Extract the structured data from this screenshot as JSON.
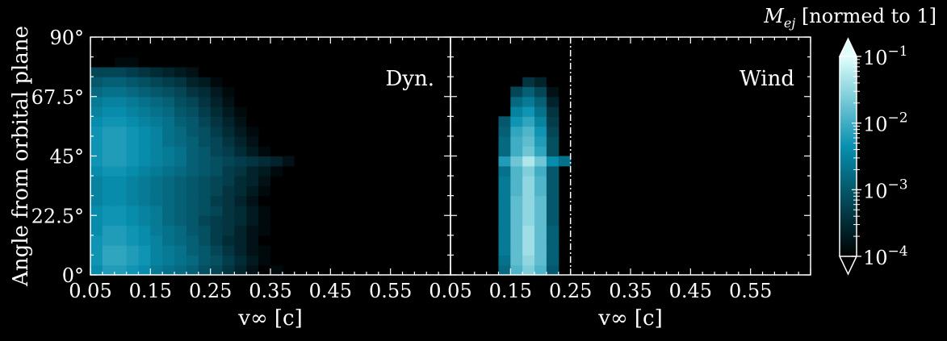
{
  "colors": {
    "background": "#000000",
    "foreground": "#ffffff",
    "cmap_low": "#000000",
    "cmap_mid": "#0890b0",
    "cmap_high": "#e0fffc"
  },
  "chart_data": [
    {
      "type": "heatmap",
      "panel_label": "Dyn.",
      "xlabel": "v∞ [c]",
      "ylabel": "Angle from orbital plane",
      "xlim": [
        0.05,
        0.65
      ],
      "ylim": [
        0,
        90
      ],
      "xticks": [
        "0.05",
        "0.15",
        "0.25",
        "0.35",
        "0.45",
        "0.55"
      ],
      "yticks": [
        "0°",
        "22.5°",
        "45°",
        "67.5°",
        "90°"
      ],
      "x_bin_width": 0.02,
      "y_bin_width": 3.75,
      "rows": [
        {
          "y": 0,
          "x0": 0.05,
          "log10": [
            -2.4,
            -2.2,
            -2.2,
            -2.3,
            -2.4,
            -2.6,
            -2.7,
            -2.8,
            -2.9,
            -3.1,
            -3.2,
            -3.4,
            -3.6,
            -3.8,
            -4.0,
            -3.9,
            -4.0,
            -4.0,
            -4.1,
            -4.2,
            -4.5,
            -4.6,
            -4.6,
            -5.0,
            -4.8
          ]
        },
        {
          "y": 3.75,
          "x0": 0.05,
          "log10": [
            -2.3,
            -2.1,
            -2.1,
            -2.2,
            -2.3,
            -2.5,
            -2.6,
            -2.7,
            -2.8,
            -3.0,
            -3.1,
            -3.3,
            -3.5,
            -3.7,
            -3.9,
            -4.0,
            -4.1,
            -4.2,
            -4.3,
            -4.5
          ]
        },
        {
          "y": 7.5,
          "x0": 0.05,
          "log10": [
            -2.3,
            -2.1,
            -2.1,
            -2.2,
            -2.3,
            -2.5,
            -2.6,
            -2.7,
            -2.9,
            -3.0,
            -3.2,
            -3.4,
            -3.6,
            -3.8,
            -3.9,
            -4.1,
            -4.3
          ]
        },
        {
          "y": 11.25,
          "x0": 0.05,
          "log10": [
            -2.3,
            -2.2,
            -2.2,
            -2.3,
            -2.4,
            -2.5,
            -2.7,
            -2.8,
            -2.9,
            -3.1,
            -3.3,
            -3.5,
            -3.6,
            -3.8,
            -4.0,
            -4.2,
            -4.4
          ]
        },
        {
          "y": 15,
          "x0": 0.05,
          "log10": [
            -2.4,
            -2.2,
            -2.2,
            -2.3,
            -2.4,
            -2.6,
            -2.7,
            -2.8,
            -3.0,
            -3.1,
            -3.3,
            -3.4,
            -3.6,
            -3.8,
            -3.9,
            -4.1,
            -4.3
          ]
        },
        {
          "y": 18.75,
          "x0": 0.05,
          "log10": [
            -2.4,
            -2.3,
            -2.3,
            -2.4,
            -2.5,
            -2.6,
            -2.8,
            -2.9,
            -3.0,
            -3.2,
            -3.3,
            -3.4,
            -3.5,
            -3.7,
            -3.9,
            -4.1
          ]
        },
        {
          "y": 22.5,
          "x0": 0.05,
          "log10": [
            -2.4,
            -2.3,
            -2.3,
            -2.4,
            -2.5,
            -2.6,
            -2.8,
            -2.9,
            -3.0,
            -3.1,
            -3.2,
            -3.4,
            -3.5,
            -3.7,
            -3.9,
            -4.1,
            -4.3
          ]
        },
        {
          "y": 26.25,
          "x0": 0.05,
          "log10": [
            -2.5,
            -2.4,
            -2.4,
            -2.5,
            -2.6,
            -2.7,
            -2.8,
            -2.9,
            -3.0,
            -3.1,
            -3.3,
            -3.4,
            -3.6,
            -3.8,
            -4.0,
            -4.2
          ]
        },
        {
          "y": 30,
          "x0": 0.05,
          "log10": [
            -2.5,
            -2.4,
            -2.4,
            -2.5,
            -2.6,
            -2.7,
            -2.8,
            -2.9,
            -3.0,
            -3.1,
            -3.2,
            -3.4,
            -3.5,
            -3.7,
            -3.9,
            -4.1,
            -4.2
          ]
        },
        {
          "y": 33.75,
          "x0": 0.05,
          "log10": [
            -2.5,
            -2.4,
            -2.4,
            -2.5,
            -2.6,
            -2.7,
            -2.8,
            -2.9,
            -3.0,
            -3.1,
            -3.2,
            -3.3,
            -3.5,
            -3.6,
            -3.8,
            -4.0,
            -4.1
          ]
        },
        {
          "y": 37.5,
          "x0": 0.05,
          "log10": [
            -2.4,
            -2.3,
            -2.3,
            -2.4,
            -2.5,
            -2.6,
            -2.7,
            -2.8,
            -2.9,
            -3.0,
            -3.1,
            -3.3,
            -3.4,
            -3.6,
            -3.7,
            -3.9,
            -4.1
          ]
        },
        {
          "y": 41.25,
          "x0": 0.05,
          "log10": [
            -2.3,
            -2.2,
            -2.2,
            -2.3,
            -2.4,
            -2.5,
            -2.6,
            -2.7,
            -2.9,
            -3.0,
            -3.1,
            -3.2,
            -3.3,
            -3.4,
            -3.5,
            -3.6,
            -3.8,
            -4.0,
            -4.2
          ]
        },
        {
          "y": 45,
          "x0": 0.05,
          "log10": [
            -2.3,
            -2.2,
            -2.2,
            -2.3,
            -2.4,
            -2.5,
            -2.6,
            -2.7,
            -2.9,
            -3.0,
            -3.2,
            -3.3,
            -3.5,
            -3.7,
            -3.9,
            -4.1
          ]
        },
        {
          "y": 48.75,
          "x0": 0.05,
          "log10": [
            -2.3,
            -2.2,
            -2.2,
            -2.3,
            -2.4,
            -2.5,
            -2.7,
            -2.8,
            -2.9,
            -3.1,
            -3.2,
            -3.4,
            -3.6,
            -3.8,
            -4.0
          ]
        },
        {
          "y": 52.5,
          "x0": 0.05,
          "log10": [
            -2.3,
            -2.2,
            -2.2,
            -2.3,
            -2.4,
            -2.5,
            -2.7,
            -2.8,
            -3.0,
            -3.1,
            -3.3,
            -3.5,
            -3.7,
            -3.9
          ]
        },
        {
          "y": 56.25,
          "x0": 0.05,
          "log10": [
            -2.4,
            -2.3,
            -2.3,
            -2.4,
            -2.5,
            -2.6,
            -2.7,
            -2.9,
            -3.0,
            -3.2,
            -3.4,
            -3.6,
            -3.8,
            -4.0
          ]
        },
        {
          "y": 60,
          "x0": 0.05,
          "log10": [
            -2.5,
            -2.4,
            -2.4,
            -2.5,
            -2.6,
            -2.7,
            -2.8,
            -3.0,
            -3.1,
            -3.3,
            -3.5,
            -3.7,
            -3.9
          ]
        },
        {
          "y": 63.75,
          "x0": 0.05,
          "log10": [
            -2.6,
            -2.5,
            -2.5,
            -2.6,
            -2.7,
            -2.8,
            -2.9,
            -3.1,
            -3.2,
            -3.4,
            -3.6,
            -3.8,
            -4.0
          ]
        },
        {
          "y": 67.5,
          "x0": 0.05,
          "log10": [
            -2.8,
            -2.7,
            -2.7,
            -2.8,
            -2.9,
            -3.0,
            -3.1,
            -3.2,
            -3.4,
            -3.5,
            -3.7,
            -3.9,
            -4.1
          ]
        },
        {
          "y": 71.25,
          "x0": 0.05,
          "log10": [
            -3.0,
            -2.9,
            -2.9,
            -3.0,
            -3.1,
            -3.2,
            -3.3,
            -3.4,
            -3.6,
            -3.7,
            -3.9,
            -4.1
          ]
        },
        {
          "y": 75,
          "x0": 0.05,
          "log10": [
            -3.2,
            -3.2,
            -3.2,
            -3.3,
            -3.4,
            -3.5,
            -3.6,
            -3.7,
            -3.8,
            -4.0,
            -4.2
          ]
        },
        {
          "y": 78.75,
          "x0": 0.05,
          "log10": [
            -5.0,
            -5.0,
            -3.9,
            -3.9,
            -4.0,
            -4.1,
            -4.2,
            -4.4,
            -4.6
          ]
        },
        {
          "y": 82.5,
          "x0": 0.09,
          "log10": [
            -4.6,
            -4.5,
            -4.6,
            -4.8
          ]
        }
      ]
    },
    {
      "type": "heatmap",
      "panel_label": "Wind",
      "xlabel": "v∞ [c]",
      "ylabel": "",
      "xlim": [
        0.05,
        0.65
      ],
      "ylim": [
        0,
        90
      ],
      "xticks": [
        "0.05",
        "0.15",
        "0.25",
        "0.35",
        "0.45",
        "0.55"
      ],
      "x_bin_width": 0.02,
      "y_bin_width": 3.75,
      "reference_line_x": 0.25,
      "rows": [
        {
          "y": 0,
          "x0": 0.13,
          "log10": [
            -2.8,
            -1.9,
            -1.6,
            -1.9,
            -3.0
          ]
        },
        {
          "y": 3.75,
          "x0": 0.13,
          "log10": [
            -2.7,
            -1.8,
            -1.5,
            -1.8,
            -2.9
          ]
        },
        {
          "y": 7.5,
          "x0": 0.13,
          "log10": [
            -2.6,
            -1.8,
            -1.4,
            -1.8,
            -2.9
          ]
        },
        {
          "y": 11.25,
          "x0": 0.13,
          "log10": [
            -2.6,
            -1.8,
            -1.4,
            -1.8,
            -2.9
          ]
        },
        {
          "y": 15,
          "x0": 0.13,
          "log10": [
            -2.6,
            -1.8,
            -1.4,
            -1.8,
            -2.9
          ]
        },
        {
          "y": 18.75,
          "x0": 0.13,
          "log10": [
            -2.6,
            -1.8,
            -1.5,
            -1.8,
            -3.0
          ]
        },
        {
          "y": 22.5,
          "x0": 0.13,
          "log10": [
            -2.6,
            -1.8,
            -1.5,
            -1.8,
            -3.0
          ]
        },
        {
          "y": 26.25,
          "x0": 0.13,
          "log10": [
            -2.6,
            -1.8,
            -1.5,
            -1.8,
            -3.0
          ]
        },
        {
          "y": 30,
          "x0": 0.13,
          "log10": [
            -2.6,
            -1.9,
            -1.5,
            -1.9,
            -3.0
          ]
        },
        {
          "y": 33.75,
          "x0": 0.13,
          "log10": [
            -2.6,
            -1.9,
            -1.5,
            -1.9,
            -3.0
          ]
        },
        {
          "y": 37.5,
          "x0": 0.13,
          "log10": [
            -2.7,
            -1.9,
            -1.6,
            -2.0,
            -3.0
          ]
        },
        {
          "y": 41.25,
          "x0": 0.13,
          "log10": [
            -2.2,
            -1.7,
            -1.3,
            -1.7,
            -2.4,
            -2.7
          ]
        },
        {
          "y": 45,
          "x0": 0.13,
          "log10": [
            -2.8,
            -2.0,
            -1.7,
            -2.1,
            -3.1
          ]
        },
        {
          "y": 48.75,
          "x0": 0.13,
          "log10": [
            -2.8,
            -2.0,
            -1.8,
            -2.2,
            -3.1
          ]
        },
        {
          "y": 52.5,
          "x0": 0.13,
          "log10": [
            -2.9,
            -2.1,
            -1.9,
            -2.3,
            -3.2
          ]
        },
        {
          "y": 56.25,
          "x0": 0.13,
          "log10": [
            -3.0,
            -2.3,
            -2.1,
            -2.5,
            -3.3
          ]
        },
        {
          "y": 60,
          "x0": 0.15,
          "log10": [
            -2.5,
            -2.3,
            -2.7,
            -3.4
          ]
        },
        {
          "y": 63.75,
          "x0": 0.15,
          "log10": [
            -2.8,
            -2.6,
            -2.9,
            -3.6
          ]
        },
        {
          "y": 67.5,
          "x0": 0.15,
          "log10": [
            -3.2,
            -2.9,
            -3.2,
            -3.8,
            -4.4
          ]
        },
        {
          "y": 71.25,
          "x0": 0.17,
          "log10": [
            -3.4,
            -3.6,
            -4.1,
            -4.6
          ]
        },
        {
          "y": 75,
          "x0": 0.17,
          "log10": [
            -4.0,
            -4.1,
            -4.3,
            -4.6
          ]
        },
        {
          "y": 78.75,
          "x0": 0.19,
          "log10": [
            -4.5,
            -4.7,
            -5.0
          ]
        }
      ]
    }
  ],
  "colorbar": {
    "title_math": "M",
    "title_sub": "ej",
    "title_text": " [normed to 1]",
    "scale": "log",
    "range": [
      0.0001,
      0.1
    ],
    "extend": "both",
    "ticks": [
      {
        "base": "10",
        "exp": "−4",
        "value": -4
      },
      {
        "base": "10",
        "exp": "−3",
        "value": -3
      },
      {
        "base": "10",
        "exp": "−2",
        "value": -2
      },
      {
        "base": "10",
        "exp": "−1",
        "value": -1
      }
    ]
  }
}
